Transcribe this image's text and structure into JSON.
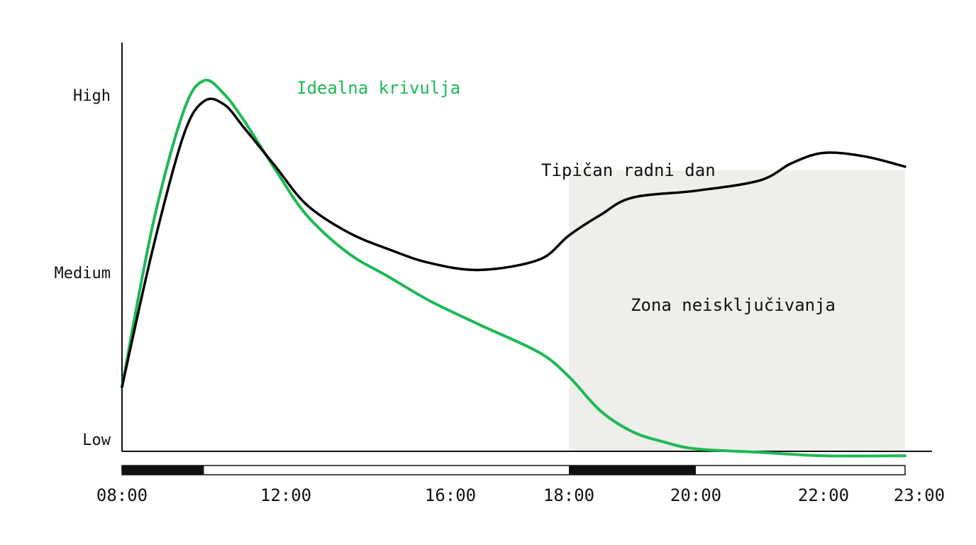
{
  "chart_data": {
    "type": "line",
    "x_ticks": [
      "08:00",
      "12:00",
      "16:00",
      "18:00",
      "20:00",
      "22:00",
      "23:00"
    ],
    "y_ticks": [
      "High",
      "Medium",
      "Low"
    ],
    "x_range": [
      "08:00",
      "23:00"
    ],
    "y_range": [
      "Low",
      "High"
    ],
    "grid": false,
    "legend": "none",
    "series": [
      {
        "name": "Idealna krivulja",
        "color": "#1db954",
        "x": [
          "08:00",
          "08:45",
          "09:30",
          "10:00",
          "10:30",
          "11:00",
          "11:45",
          "12:30",
          "13:30",
          "14:30",
          "15:30",
          "16:30",
          "17:30",
          "18:00",
          "18:30",
          "19:00",
          "19:30",
          "20:00",
          "21:00",
          "22:00",
          "23:00"
        ],
        "y": [
          0.15,
          0.62,
          0.95,
          1.04,
          1.0,
          0.92,
          0.78,
          0.65,
          0.54,
          0.47,
          0.4,
          0.33,
          0.25,
          0.18,
          0.08,
          0.02,
          -0.01,
          -0.03,
          -0.04,
          -0.05,
          -0.05
        ]
      },
      {
        "name": "Tipičan radni dan",
        "color": "#000000",
        "x": [
          "08:00",
          "08:45",
          "09:30",
          "10:00",
          "10:30",
          "11:00",
          "11:45",
          "12:30",
          "13:30",
          "14:30",
          "15:30",
          "16:30",
          "17:30",
          "18:00",
          "18:30",
          "19:00",
          "20:00",
          "21:00",
          "21:30",
          "22:00",
          "22:30",
          "23:00"
        ],
        "y": [
          0.15,
          0.55,
          0.88,
          0.98,
          0.97,
          0.9,
          0.79,
          0.68,
          0.6,
          0.55,
          0.51,
          0.49,
          0.52,
          0.59,
          0.65,
          0.7,
          0.72,
          0.75,
          0.8,
          0.83,
          0.82,
          0.79
        ]
      }
    ],
    "annotations": {
      "ideal_label": "Idealna krivulja",
      "typical_label": "Tipičan radni dan",
      "zone_label": "Zona neisključivanja"
    },
    "shaded_zone": {
      "from": "18:00",
      "to": "23:00",
      "color": "#eeeeea"
    },
    "time_bar_segments": [
      {
        "from": "08:00",
        "to": "10:00",
        "filled": true
      },
      {
        "from": "10:00",
        "to": "18:00",
        "filled": false
      },
      {
        "from": "18:00",
        "to": "20:00",
        "filled": true
      },
      {
        "from": "20:00",
        "to": "23:00",
        "filled": false
      }
    ]
  }
}
